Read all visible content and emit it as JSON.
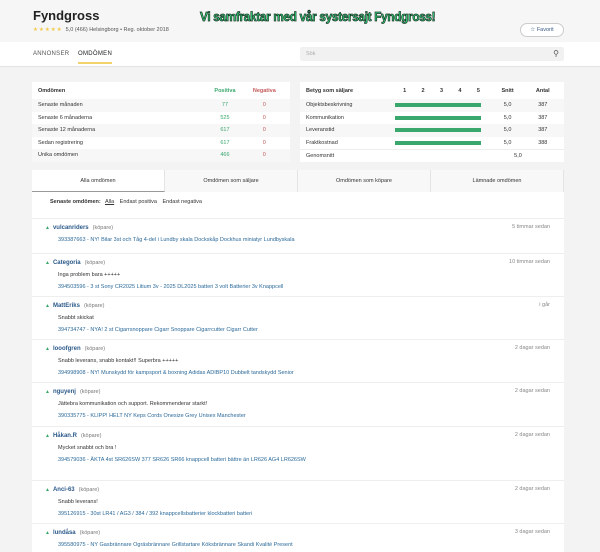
{
  "header": {
    "title": "Fyndgross",
    "stars": "★★★★★",
    "rating": "5,0 (466) Helsingborg • Reg. oktober 2018",
    "banner": "Vi samfraktar med vår systersajt Fyndgross!",
    "favorite_label": "☆ Favorit"
  },
  "nav": {
    "tabs": [
      "ANNONSER",
      "OMDÖMEN"
    ],
    "active": "OMDÖMEN",
    "search_placeholder": "Sök"
  },
  "summary": {
    "headers": [
      "Omdömen",
      "Positiva",
      "Negativa"
    ],
    "rows": [
      [
        "Senaste månaden",
        "77",
        "0"
      ],
      [
        "Senaste 6 månaderna",
        "525",
        "0"
      ],
      [
        "Senaste 12 månaderna",
        "617",
        "0"
      ],
      [
        "Sedan registrering",
        "617",
        "0"
      ],
      [
        "Unika omdömen",
        "466",
        "0"
      ]
    ]
  },
  "seller": {
    "headers": [
      "Betyg som säljare",
      "1",
      "2",
      "3",
      "4",
      "5",
      "Snitt",
      "Antal"
    ],
    "rows": [
      {
        "label": "Objektsbeskrivning",
        "score": 5.0,
        "snitt": "5,0",
        "antal": "387"
      },
      {
        "label": "Kommunikation",
        "score": 5.0,
        "snitt": "5,0",
        "antal": "387"
      },
      {
        "label": "Leveranstid",
        "score": 5.0,
        "snitt": "5,0",
        "antal": "387"
      },
      {
        "label": "Fraktkostnad",
        "score": 5.0,
        "snitt": "5,0",
        "antal": "388"
      }
    ],
    "average_label": "Genomsnitt",
    "average": "5,0"
  },
  "tabs": [
    "Alla omdömen",
    "Omdömen som säljare",
    "Omdömen som köpare",
    "Lämnade omdömen"
  ],
  "filter": {
    "label": "Senaste omdömen:",
    "options": [
      "Alla",
      "Endast positiva",
      "Endast negativa"
    ]
  },
  "reviews": [
    {
      "name": "vulcanriders",
      "role": "(köpare)",
      "time": "5 timmar sedan",
      "comment": "",
      "item": "393387663 - NY! Bilar 3st och Tåg 4-del i Lundby skala Dockskåp Dockhus miniatyr Lundbyskala"
    },
    {
      "name": "Categoria",
      "role": "(köpare)",
      "time": "10 timmar sedan",
      "comment": "Inga problem bara +++++",
      "item": "394503596 - 3 st Sony CR2025 Litium 3v - 2025 DL2025 batteri 3 volt Batterier 3v Knappcell"
    },
    {
      "name": "MattEriks",
      "role": "(köpare)",
      "time": "i går",
      "comment": "Snabbt skickat",
      "item": "394734747 - NYA! 2 st Cigarrsnoppare Cigarr Snoppare Cigarrcutter Cigarr Cutter"
    },
    {
      "name": "looofgren",
      "role": "(köpare)",
      "time": "2 dagar sedan",
      "comment": "Snabb leverans, snabb kontakt!! Superbra +++++",
      "item": "394998908 - NY! Munskydd för kampsport & boxning Adidas ADIBP10 Dubbelt tandskydd Senior"
    },
    {
      "name": "nguyenj",
      "role": "(köpare)",
      "time": "2 dagar sedan",
      "comment": "Jättebra kommunikation och support. Rekommenderar starkt!",
      "item": "390335775 - KLIPP! HELT NY Keps Cords Onesize Grey Unisex Manchester"
    },
    {
      "name": "Håkan.R",
      "role": "(köpare)",
      "time": "2 dagar sedan",
      "comment": "Mycket snabbt och bra !",
      "item": "394579036 - ÄKTA 4st SR626SW 377 SR626 SR66 knappcell batteri bättre än LR626 AG4 LR626SW"
    },
    {
      "name": "Anci-63",
      "role": "(köpare)",
      "time": "2 dagar sedan",
      "comment": "Snabb leverans!",
      "item": "395126915 - 30st LR41 / AG3 / 384 / 392 knappcellsbatterier klockbatteri batteri"
    },
    {
      "name": "lundåsa",
      "role": "(köpare)",
      "time": "3 dagar sedan",
      "comment": "",
      "item": "395580975 - NY Gasbrännare Ogräsbrännare Grillstartare Köksbrännare Skandi Kvalité Present"
    }
  ],
  "colors": {
    "positive": "#3aa76d",
    "negative": "#c45a5a",
    "link": "#2c6a9a",
    "accent": "#f0d36a"
  }
}
